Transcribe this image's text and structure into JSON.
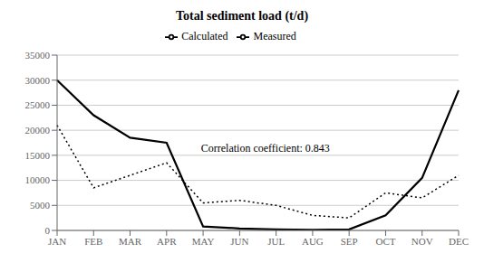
{
  "chart_data": {
    "type": "line",
    "title": "Total sediment load (t/d)",
    "categories": [
      "JAN",
      "FEB",
      "MAR",
      "APR",
      "MAY",
      "JUN",
      "JUL",
      "AUG",
      "SEP",
      "OCT",
      "NOV",
      "DEC"
    ],
    "series": [
      {
        "name": "Measured",
        "color": "black",
        "line_style": "dotted",
        "values": [
          21000,
          8500,
          11000,
          13500,
          5500,
          6000,
          5000,
          3000,
          2500,
          7500,
          6500,
          11000
        ]
      },
      {
        "name": "Calculated",
        "color": "black",
        "line_style": "solid",
        "values": [
          30000,
          23000,
          18500,
          17500,
          800,
          400,
          200,
          100,
          200,
          3000,
          10500,
          28000
        ]
      }
    ],
    "ylim": [
      0,
      35000
    ],
    "yticks": [
      0,
      5000,
      10000,
      15000,
      20000,
      25000,
      30000,
      35000
    ],
    "grid": true,
    "legend": "top",
    "annotations": [
      "Correlation coefficient: 0.843"
    ]
  }
}
